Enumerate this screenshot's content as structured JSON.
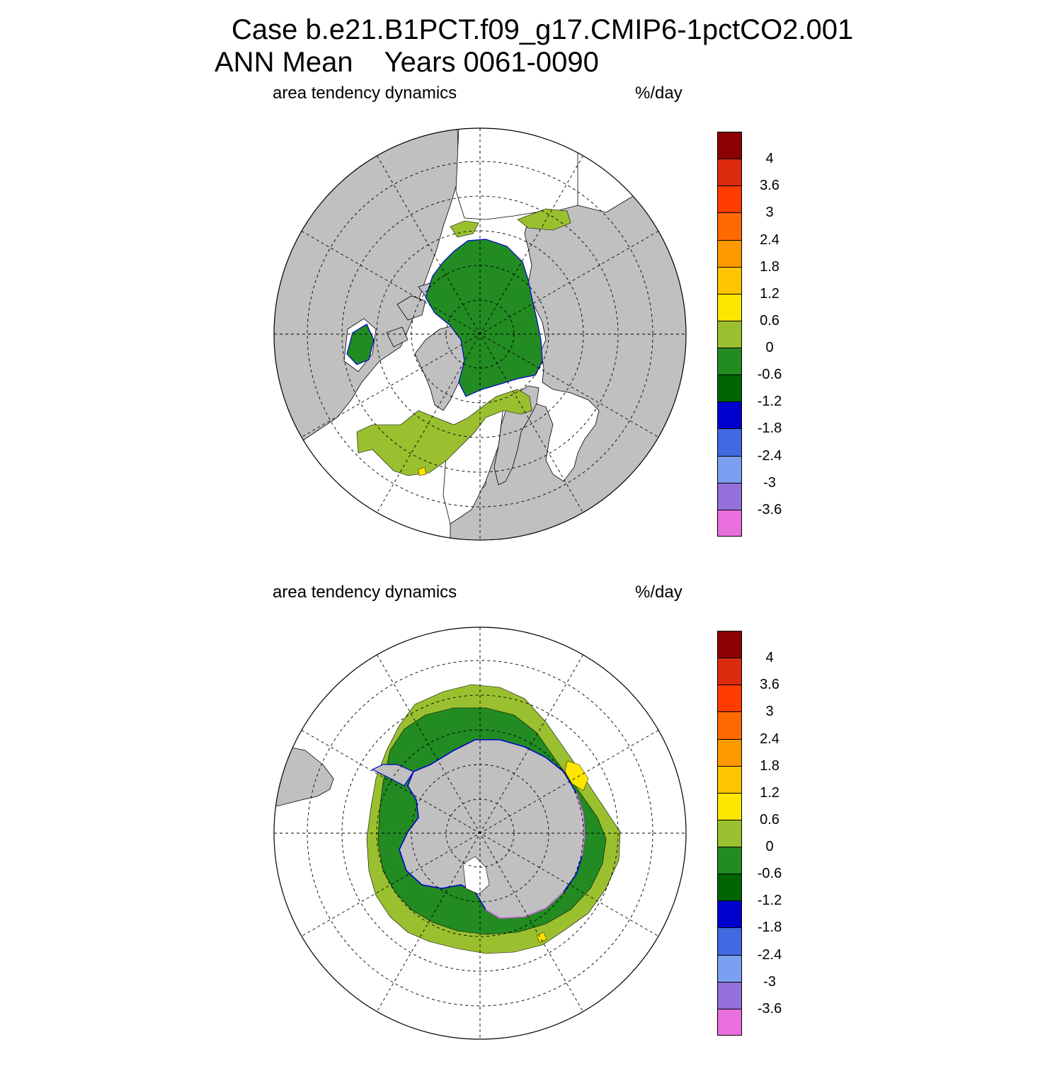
{
  "title": {
    "case": "Case b.e21.B1PCT.f09_g17.CMIP6-1pctCO2.001",
    "period_label": "ANN Mean",
    "years": "Years 0061-0090"
  },
  "colorbar": {
    "labels": [
      "4",
      "3.6",
      "3",
      "2.4",
      "1.8",
      "1.2",
      "0.6",
      "0",
      "-0.6",
      "-1.2",
      "-1.8",
      "-2.4",
      "-3",
      "-3.6"
    ],
    "colors": [
      "#8b0000",
      "#dc2a0e",
      "#ff3c00",
      "#ff6a00",
      "#ff9900",
      "#ffc400",
      "#ffe600",
      "#9ac030",
      "#228b22",
      "#006400",
      "#0000cd",
      "#4169e1",
      "#7b9ff0",
      "#9370db",
      "#e86fdc"
    ]
  },
  "colors": {
    "land": "#c0c0c0",
    "ocean": "#ffffff",
    "ice_decrease_light": "#228b22",
    "ice_decrease_dark": "#006400",
    "ice_increase_light": "#9ac030",
    "ice_increase_yellow": "#ffe600",
    "edge_blue": "#0000cd",
    "edge_pink": "#e86fdc"
  },
  "panels": [
    {
      "hemisphere": "north",
      "icon": "arctic-polar-map",
      "variable": "area tendency dynamics",
      "units": "%/day"
    },
    {
      "hemisphere": "south",
      "icon": "antarctic-polar-map",
      "variable": "area tendency dynamics",
      "units": "%/day"
    }
  ]
}
